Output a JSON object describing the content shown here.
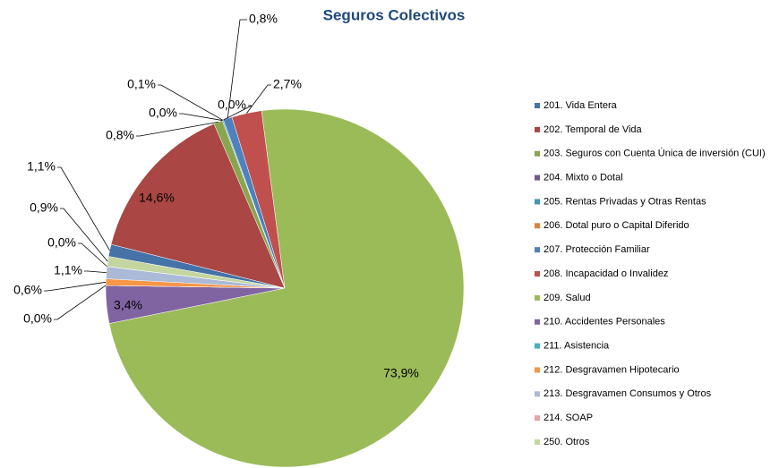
{
  "chart_data": {
    "type": "pie",
    "title": "Seguros Colectivos",
    "categories": [
      "201. Vida Entera",
      "202. Temporal de Vida",
      "203. Seguros con Cuenta Única de inversión (CUI)",
      "204. Mixto o Dotal",
      "205. Rentas Privadas y Otras Rentas",
      "206. Dotal puro o Capital Diferido",
      "207. Protección Familiar",
      "208. Incapacidad o Invalidez",
      "209. Salud",
      "210. Accidentes Personales",
      "211. Asistencia",
      "212. Desgravamen Hipotecario",
      "213. Desgravamen Consumos y Otros",
      "214. SOAP",
      "250. Otros"
    ],
    "values": [
      1.1,
      14.6,
      0.8,
      0.0,
      0.1,
      0.0,
      0.8,
      2.7,
      73.9,
      3.4,
      0.0,
      0.6,
      1.1,
      0.0,
      0.9
    ],
    "value_labels": [
      "1,1%",
      "14,6%",
      "0,8%",
      "0,0%",
      "0,1%",
      "0,0%",
      "0,8%",
      "2,7%",
      "73,9%",
      "3,4%",
      "0,0%",
      "0,6%",
      "1,1%",
      "0,0%",
      "0,9%"
    ],
    "colors": [
      "#4572a7",
      "#aa4643",
      "#89a54e",
      "#71588f",
      "#4198af",
      "#db843d",
      "#4f81bd",
      "#c0504d",
      "#9bbb59",
      "#8064a2",
      "#4bacc6",
      "#f79646",
      "#aabad7",
      "#e6a4a3",
      "#c4d6a0"
    ],
    "legend": "right"
  }
}
